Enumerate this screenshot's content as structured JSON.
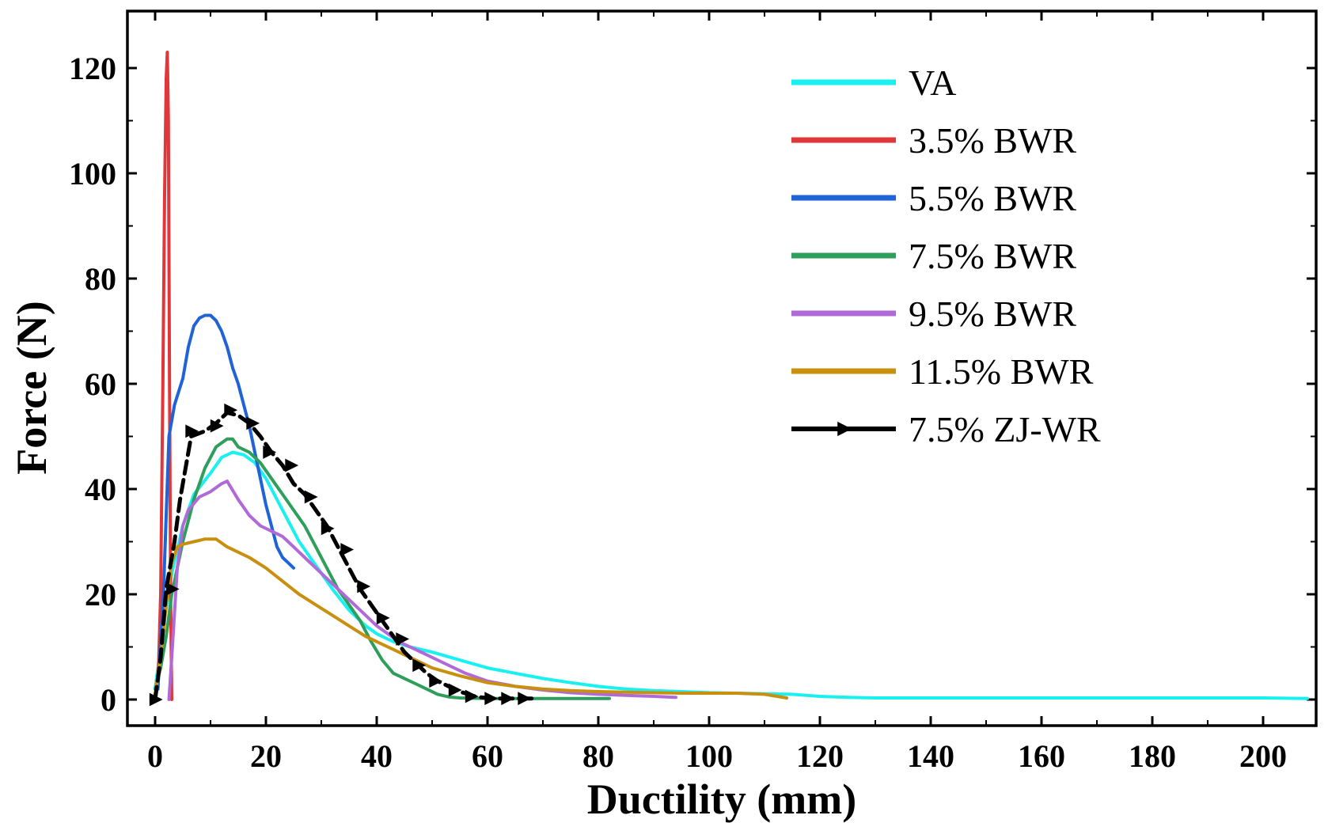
{
  "chart_data": {
    "type": "line",
    "title": "",
    "xlabel": "Ductility (mm)",
    "ylabel": "Force (N)",
    "xlim": [
      -5,
      210
    ],
    "ylim": [
      -5,
      130
    ],
    "xticks": [
      0,
      20,
      40,
      60,
      80,
      100,
      120,
      140,
      160,
      180,
      200
    ],
    "yticks": [
      0,
      20,
      40,
      60,
      80,
      100,
      120
    ],
    "grid": false,
    "legend_position": "top-right",
    "series": [
      {
        "name": "VA",
        "color": "#19f0f0",
        "marker": "none",
        "x": [
          0,
          0.5,
          1.5,
          3,
          5,
          7,
          10,
          12,
          14,
          16,
          18,
          20,
          22,
          24,
          26,
          28,
          30,
          32,
          35,
          38,
          40,
          43,
          46,
          50,
          55,
          60,
          65,
          70,
          75,
          80,
          85,
          90,
          95,
          100,
          105,
          110,
          115,
          120,
          125,
          130,
          140,
          150,
          160,
          170,
          180,
          190,
          200,
          208
        ],
        "y": [
          2,
          6,
          14,
          24,
          33,
          39,
          43,
          46,
          47,
          46.5,
          45,
          42,
          38,
          34,
          30,
          27,
          24,
          21,
          17,
          14,
          12.5,
          11,
          10,
          9,
          7.5,
          6,
          5,
          4,
          3.2,
          2.5,
          2,
          1.7,
          1.5,
          1.3,
          1.2,
          1.1,
          1.0,
          0.6,
          0.4,
          0.3,
          0.3,
          0.3,
          0.3,
          0.3,
          0.3,
          0.3,
          0.3,
          0.2
        ]
      },
      {
        "name": "3.5% BWR",
        "color": "#e0383a",
        "marker": "none",
        "x": [
          0.5,
          1.0,
          1.4,
          1.7,
          2.0,
          2.2,
          2.4,
          2.6,
          2.8,
          3.0
        ],
        "y": [
          2,
          20,
          60,
          95,
          118,
          123,
          110,
          60,
          20,
          0
        ]
      },
      {
        "name": "5.5% BWR",
        "color": "#1f63d6",
        "marker": "none",
        "x": [
          0.5,
          1.5,
          2.5,
          3.5,
          5,
          6,
          7,
          8,
          9,
          10,
          11,
          12,
          13,
          14,
          15,
          16,
          17,
          18,
          19,
          20,
          21,
          22,
          23,
          24,
          25
        ],
        "y": [
          2,
          20,
          50,
          56,
          61,
          67,
          71,
          72.5,
          73,
          73,
          72,
          70,
          67,
          63,
          60,
          56,
          52,
          47,
          42,
          37,
          33,
          29,
          27,
          26,
          25
        ]
      },
      {
        "name": "7.5% BWR",
        "color": "#2e9e5b",
        "marker": "none",
        "x": [
          0,
          1,
          2,
          3,
          5,
          7,
          9,
          11,
          13,
          14,
          15,
          17,
          19,
          21,
          23,
          25,
          27,
          29,
          31,
          33,
          35,
          37,
          39,
          41,
          43,
          45,
          47,
          49,
          51,
          53,
          55,
          60,
          65,
          70,
          75,
          82
        ],
        "y": [
          2,
          6,
          12,
          20,
          30,
          38,
          44,
          48,
          49.5,
          49.5,
          48,
          47,
          45,
          42,
          39,
          36,
          33,
          29,
          25,
          21,
          18,
          15,
          11,
          7.5,
          5,
          4,
          3,
          2,
          1,
          0.5,
          0.3,
          0.2,
          0.2,
          0.2,
          0.2,
          0.2
        ]
      },
      {
        "name": "9.5% BWR",
        "color": "#b06ad8",
        "marker": "none",
        "x": [
          2.5,
          3,
          4,
          5,
          6,
          8,
          10,
          12,
          13,
          15,
          17,
          19,
          21,
          23,
          25,
          27,
          30,
          33,
          36,
          40,
          44,
          48,
          52,
          56,
          60,
          65,
          70,
          75,
          80,
          85,
          90,
          94
        ],
        "y": [
          0,
          8,
          25,
          33,
          36,
          38.5,
          39.5,
          41,
          41.5,
          38,
          35,
          33,
          32,
          31,
          29,
          27,
          24,
          21,
          18,
          14,
          11,
          9,
          7,
          5,
          3.5,
          2.5,
          1.8,
          1.3,
          1.0,
          0.8,
          0.6,
          0.4
        ]
      },
      {
        "name": "11.5% BWR",
        "color": "#c8900e",
        "marker": "none",
        "x": [
          0,
          1,
          2,
          3,
          4,
          5,
          7,
          9,
          11,
          13,
          15,
          17,
          20,
          23,
          26,
          29,
          32,
          35,
          38,
          41,
          44,
          47,
          50,
          55,
          60,
          65,
          70,
          75,
          80,
          85,
          90,
          95,
          100,
          105,
          110,
          114
        ],
        "y": [
          1,
          8,
          18,
          26,
          29,
          29.5,
          30,
          30.5,
          30.5,
          29,
          28,
          27,
          25,
          22.5,
          20,
          18,
          16,
          14,
          12,
          10.5,
          9,
          7.5,
          6,
          4.5,
          3.2,
          2.5,
          2.0,
          1.7,
          1.5,
          1.4,
          1.3,
          1.2,
          1.2,
          1.2,
          1.0,
          0.3
        ]
      },
      {
        "name": "7.5% ZJ-WR",
        "color": "#000000",
        "marker": "triangle-right",
        "x": [
          0,
          1,
          2,
          3.5,
          4.5,
          5.5,
          6.5,
          9,
          11,
          13,
          15,
          17,
          19,
          21,
          23,
          25,
          27,
          29,
          31,
          33,
          35,
          37,
          39,
          41,
          43,
          45,
          47,
          49,
          51,
          53,
          55,
          58,
          61,
          64,
          67,
          69
        ],
        "y": [
          0,
          8,
          21,
          30,
          38,
          44,
          50,
          51,
          52.5,
          54.5,
          54,
          52.5,
          50,
          47,
          44.5,
          41,
          39,
          36,
          33,
          29,
          25,
          21,
          18,
          15,
          12,
          9,
          7,
          5,
          3.5,
          2.5,
          1.5,
          0.5,
          0.2,
          0.2,
          0.2,
          0.2
        ],
        "marker_x": [
          0,
          3,
          6.5,
          11,
          13.5,
          17.5,
          20.5,
          24.5,
          28,
          31,
          34.5,
          37.5,
          41,
          44.5,
          47.5,
          50.5,
          54,
          57,
          60.5,
          63.5,
          66.5
        ],
        "marker_y": [
          0,
          21,
          51,
          52,
          55,
          52.5,
          47,
          44.5,
          38.5,
          32.5,
          28.5,
          21.5,
          15.5,
          11.5,
          6.5,
          3.5,
          1.8,
          0.6,
          0.2,
          0.2,
          0.2
        ]
      }
    ]
  }
}
